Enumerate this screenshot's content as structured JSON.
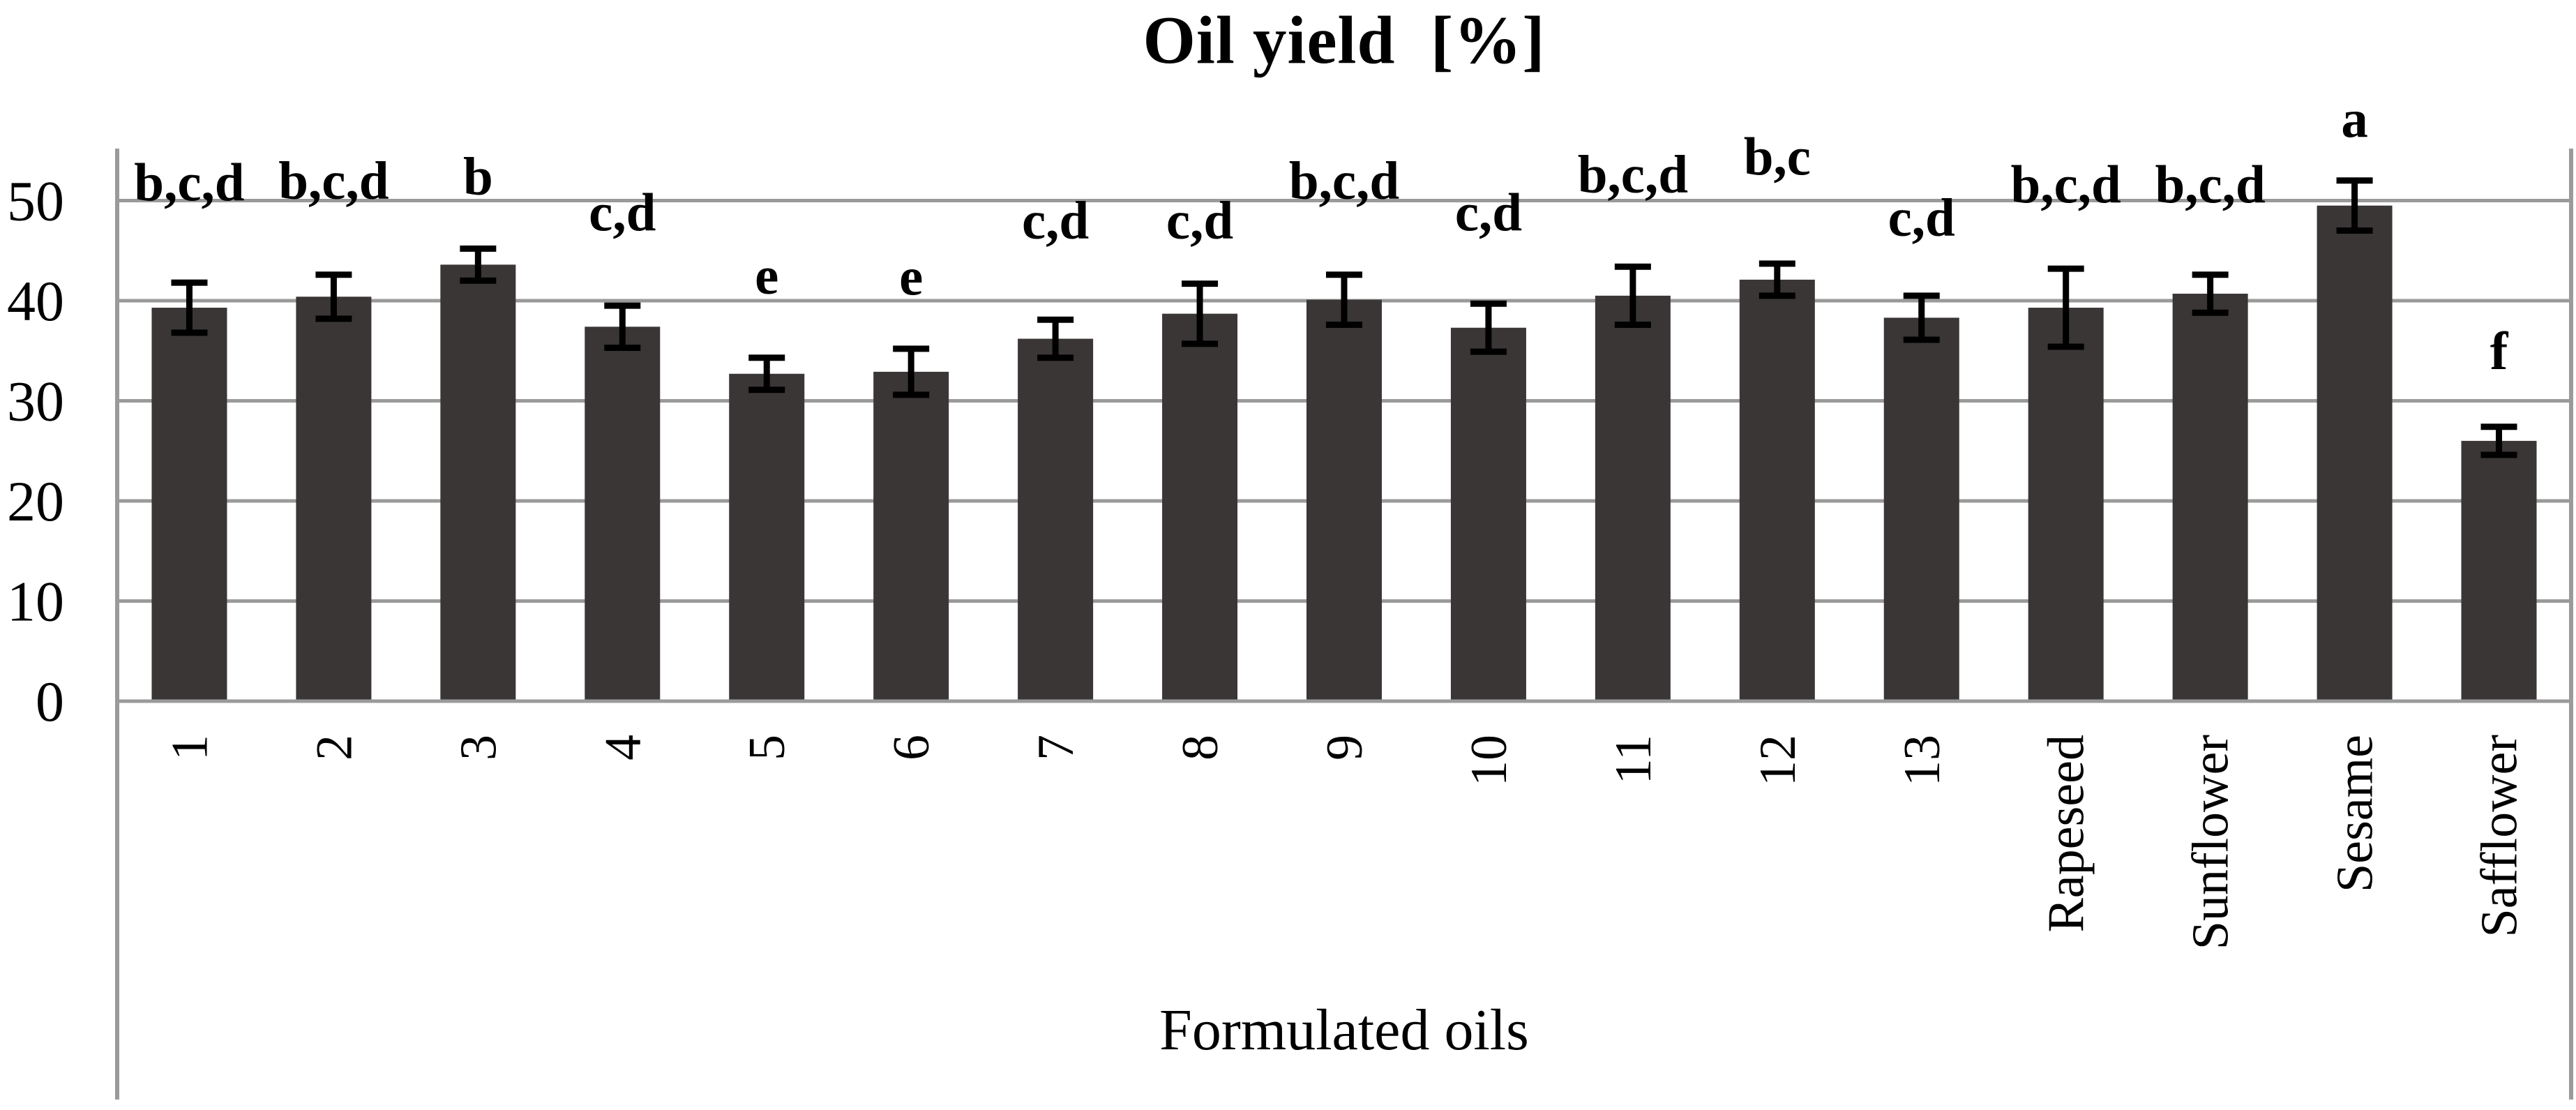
{
  "figure": {
    "background_color": "#ffffff"
  },
  "chart_data": {
    "type": "bar",
    "title": "Oil yield  [%]",
    "xlabel": "Formulated oils",
    "ylabel": "",
    "ylim": [
      0,
      55
    ],
    "yticks": [
      0,
      10,
      20,
      30,
      40,
      50
    ],
    "grid": true,
    "legend": "none",
    "bar_color": "#3a3636",
    "grid_color": "#9a9a9a",
    "axis_color": "#9a9a9a",
    "error_bar_color": "#000000",
    "categories": [
      "1",
      "2",
      "3",
      "4",
      "5",
      "6",
      "7",
      "8",
      "9",
      "10",
      "11",
      "12",
      "13",
      "Rapeseed",
      "Sunflower",
      "Sesame",
      "Safflower"
    ],
    "values": [
      39.3,
      40.4,
      43.6,
      37.4,
      32.7,
      32.9,
      36.2,
      38.7,
      40.1,
      37.3,
      40.5,
      42.1,
      38.3,
      39.3,
      40.7,
      49.5,
      26.0
    ],
    "errors": [
      2.5,
      2.2,
      1.6,
      2.1,
      1.6,
      2.3,
      1.9,
      3.0,
      2.5,
      2.4,
      2.9,
      1.6,
      2.2,
      3.9,
      1.9,
      2.5,
      1.4
    ],
    "significance_labels": [
      "b,c,d",
      "b,c,d",
      "b",
      "c,d",
      "e",
      "e",
      "c,d",
      "c,d",
      "b,c,d",
      "c,d",
      "b,c,d",
      "b,c",
      "c,d",
      "b,c,d",
      "b,c,d",
      "a",
      "f"
    ],
    "significance_label_y": [
      51.8,
      52.0,
      52.4,
      48.8,
      42.5,
      42.4,
      48.0,
      48.0,
      52.0,
      48.8,
      52.6,
      54.4,
      48.3,
      51.6,
      51.6,
      58.2,
      35.0
    ]
  }
}
